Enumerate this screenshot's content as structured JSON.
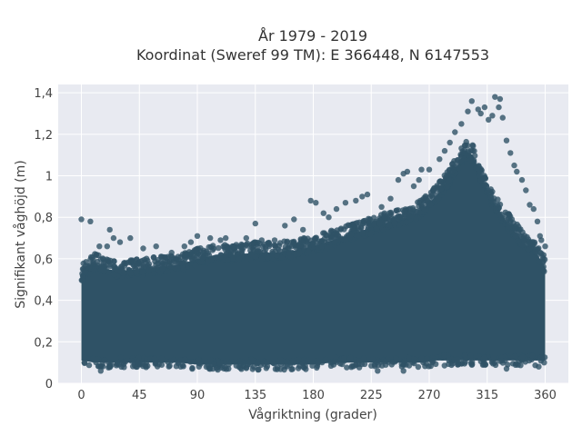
{
  "chart_data": {
    "type": "scatter",
    "title_line1": "År 1979 - 2019",
    "title_line2": "Koordinat (Sweref 99 TM): E 366448, N 6147553",
    "xlabel": "Vågriktning (grader)",
    "ylabel": "Signifikant våghöjd (m)",
    "xlim": [
      -18,
      378
    ],
    "ylim": [
      0,
      1.44
    ],
    "xticks": [
      0,
      45,
      90,
      135,
      180,
      225,
      270,
      315,
      360
    ],
    "xtick_labels": [
      "0",
      "45",
      "90",
      "135",
      "180",
      "225",
      "270",
      "315",
      "360"
    ],
    "yticks": [
      0,
      0.2,
      0.4,
      0.6,
      0.8,
      1.0,
      1.2,
      1.4
    ],
    "ytick_labels": [
      "0",
      "0,2",
      "0,4",
      "0,6",
      "0,8",
      "1",
      "1,2",
      "1,4"
    ],
    "grid": true,
    "colors": {
      "background": "#e8eaf1",
      "grid": "#ffffff",
      "marker": "#2f5266"
    },
    "envelope": {
      "direction": [
        0,
        10,
        20,
        30,
        45,
        60,
        75,
        90,
        105,
        120,
        135,
        150,
        165,
        180,
        195,
        210,
        225,
        240,
        255,
        265,
        275,
        285,
        292,
        298,
        304,
        310,
        316,
        322,
        330,
        338,
        346,
        354,
        360
      ],
      "upper_dense": [
        0.52,
        0.58,
        0.55,
        0.54,
        0.55,
        0.56,
        0.57,
        0.6,
        0.62,
        0.62,
        0.63,
        0.63,
        0.64,
        0.66,
        0.69,
        0.72,
        0.75,
        0.78,
        0.8,
        0.84,
        0.9,
        0.98,
        1.05,
        1.12,
        1.1,
        1.0,
        0.92,
        0.85,
        0.78,
        0.72,
        0.66,
        0.62,
        0.56
      ],
      "lower_dense": [
        0.11,
        0.1,
        0.1,
        0.1,
        0.1,
        0.1,
        0.1,
        0.09,
        0.09,
        0.09,
        0.09,
        0.09,
        0.09,
        0.09,
        0.1,
        0.1,
        0.1,
        0.1,
        0.1,
        0.1,
        0.11,
        0.11,
        0.11,
        0.11,
        0.11,
        0.11,
        0.11,
        0.11,
        0.11,
        0.11,
        0.11,
        0.11,
        0.11
      ]
    },
    "outlier_points": [
      [
        0,
        0.79
      ],
      [
        7,
        0.78
      ],
      [
        14,
        0.66
      ],
      [
        20,
        0.66
      ],
      [
        22,
        0.74
      ],
      [
        25,
        0.7
      ],
      [
        30,
        0.68
      ],
      [
        38,
        0.7
      ],
      [
        48,
        0.65
      ],
      [
        58,
        0.66
      ],
      [
        70,
        0.63
      ],
      [
        80,
        0.66
      ],
      [
        85,
        0.68
      ],
      [
        90,
        0.71
      ],
      [
        95,
        0.64
      ],
      [
        100,
        0.7
      ],
      [
        108,
        0.69
      ],
      [
        112,
        0.7
      ],
      [
        118,
        0.66
      ],
      [
        128,
        0.7
      ],
      [
        135,
        0.77
      ],
      [
        140,
        0.69
      ],
      [
        150,
        0.69
      ],
      [
        158,
        0.76
      ],
      [
        165,
        0.79
      ],
      [
        172,
        0.74
      ],
      [
        178,
        0.88
      ],
      [
        182,
        0.87
      ],
      [
        188,
        0.82
      ],
      [
        192,
        0.8
      ],
      [
        198,
        0.84
      ],
      [
        205,
        0.87
      ],
      [
        213,
        0.88
      ],
      [
        218,
        0.9
      ],
      [
        222,
        0.91
      ],
      [
        233,
        0.85
      ],
      [
        240,
        0.89
      ],
      [
        246,
        0.98
      ],
      [
        250,
        1.01
      ],
      [
        253,
        1.02
      ],
      [
        258,
        0.95
      ],
      [
        262,
        0.98
      ],
      [
        264,
        1.03
      ],
      [
        270,
        1.03
      ],
      [
        278,
        1.08
      ],
      [
        282,
        1.12
      ],
      [
        286,
        1.16
      ],
      [
        290,
        1.21
      ],
      [
        295,
        1.25
      ],
      [
        300,
        1.31
      ],
      [
        303,
        1.36
      ],
      [
        308,
        1.32
      ],
      [
        310,
        1.3
      ],
      [
        313,
        1.33
      ],
      [
        316,
        1.27
      ],
      [
        319,
        1.29
      ],
      [
        321,
        1.38
      ],
      [
        324,
        1.33
      ],
      [
        325,
        1.37
      ],
      [
        327,
        1.28
      ],
      [
        330,
        1.17
      ],
      [
        333,
        1.11
      ],
      [
        336,
        1.05
      ],
      [
        338,
        1.02
      ],
      [
        342,
        0.98
      ],
      [
        345,
        0.93
      ],
      [
        348,
        0.86
      ],
      [
        351,
        0.84
      ],
      [
        354,
        0.78
      ],
      [
        356,
        0.71
      ],
      [
        357,
        0.69
      ],
      [
        360,
        0.66
      ],
      [
        330,
        0.07
      ],
      [
        250,
        0.06
      ],
      [
        230,
        0.06
      ],
      [
        15,
        0.06
      ],
      [
        355,
        0.08
      ]
    ]
  }
}
